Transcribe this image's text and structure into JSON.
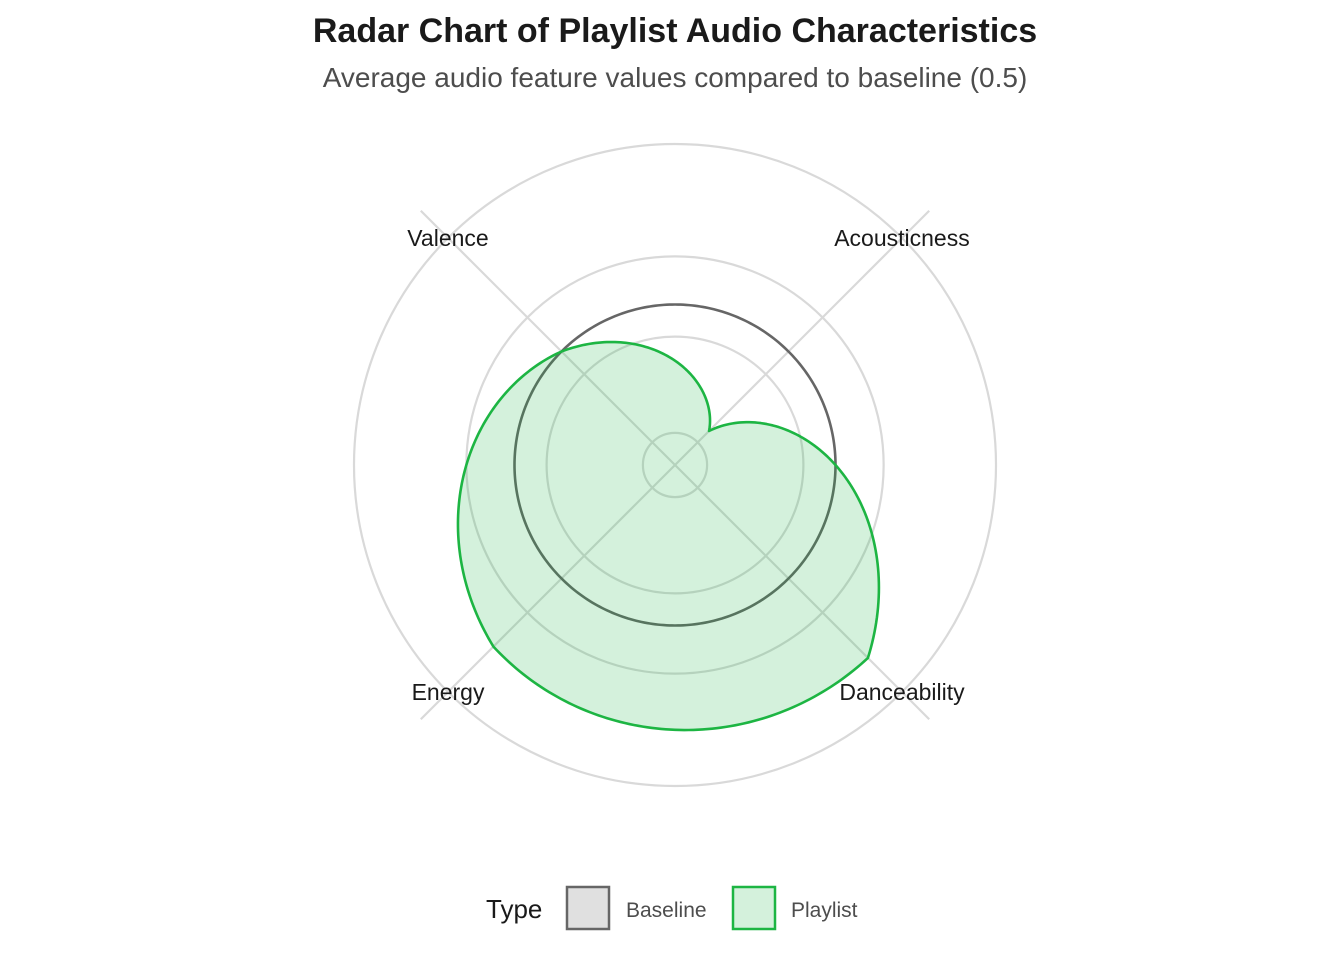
{
  "chart_data": {
    "type": "radar",
    "title": "Radar Chart of Playlist Audio Characteristics",
    "subtitle": "Average audio feature values compared to baseline (0.5)",
    "categories": [
      "Acousticness",
      "Danceability",
      "Energy",
      "Valence"
    ],
    "rlim": [
      0,
      1
    ],
    "grid_levels": [
      0.1,
      0.4,
      0.65,
      1.0
    ],
    "grid": true,
    "legend_position": "bottom",
    "legend_title": "Type",
    "series": [
      {
        "name": "Baseline",
        "values": [
          0.5,
          0.5,
          0.5,
          0.5
        ],
        "stroke": "#666666",
        "fill": "#e0e0e0",
        "fill_opacity": 0
      },
      {
        "name": "Playlist",
        "values": [
          0.15,
          0.85,
          0.8,
          0.5
        ],
        "stroke": "#1db543",
        "fill": "#1db543",
        "fill_opacity": 0.19
      }
    ]
  }
}
